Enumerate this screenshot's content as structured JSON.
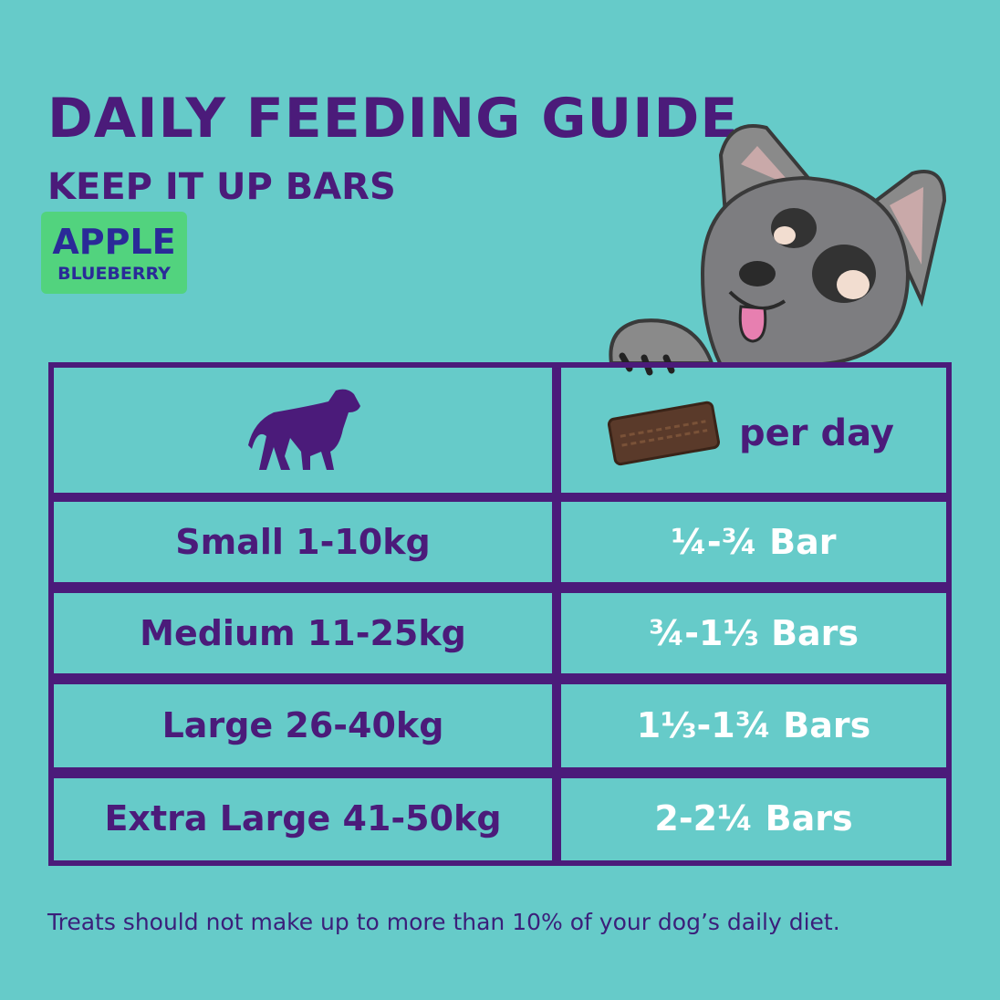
{
  "header": {
    "title": "DAILY FEEDING GUIDE",
    "subtitle": "KEEP IT UP BARS",
    "flavour": [
      "APPLE",
      "BLUEBERRY"
    ]
  },
  "table": {
    "header": "per day",
    "rows": [
      [
        "Small 1-10kg",
        "¼-¾ Bar"
      ],
      [
        "Medium 11-25kg",
        "¾-1⅓ Bars"
      ],
      [
        "Large 26-40kg",
        "1⅓-1¾ Bars"
      ],
      [
        "Extra Large 41-50kg",
        "2-2¼ Bars"
      ]
    ]
  },
  "footnote": "Treats should not make up to more than 10% of your dog’s daily diet."
}
